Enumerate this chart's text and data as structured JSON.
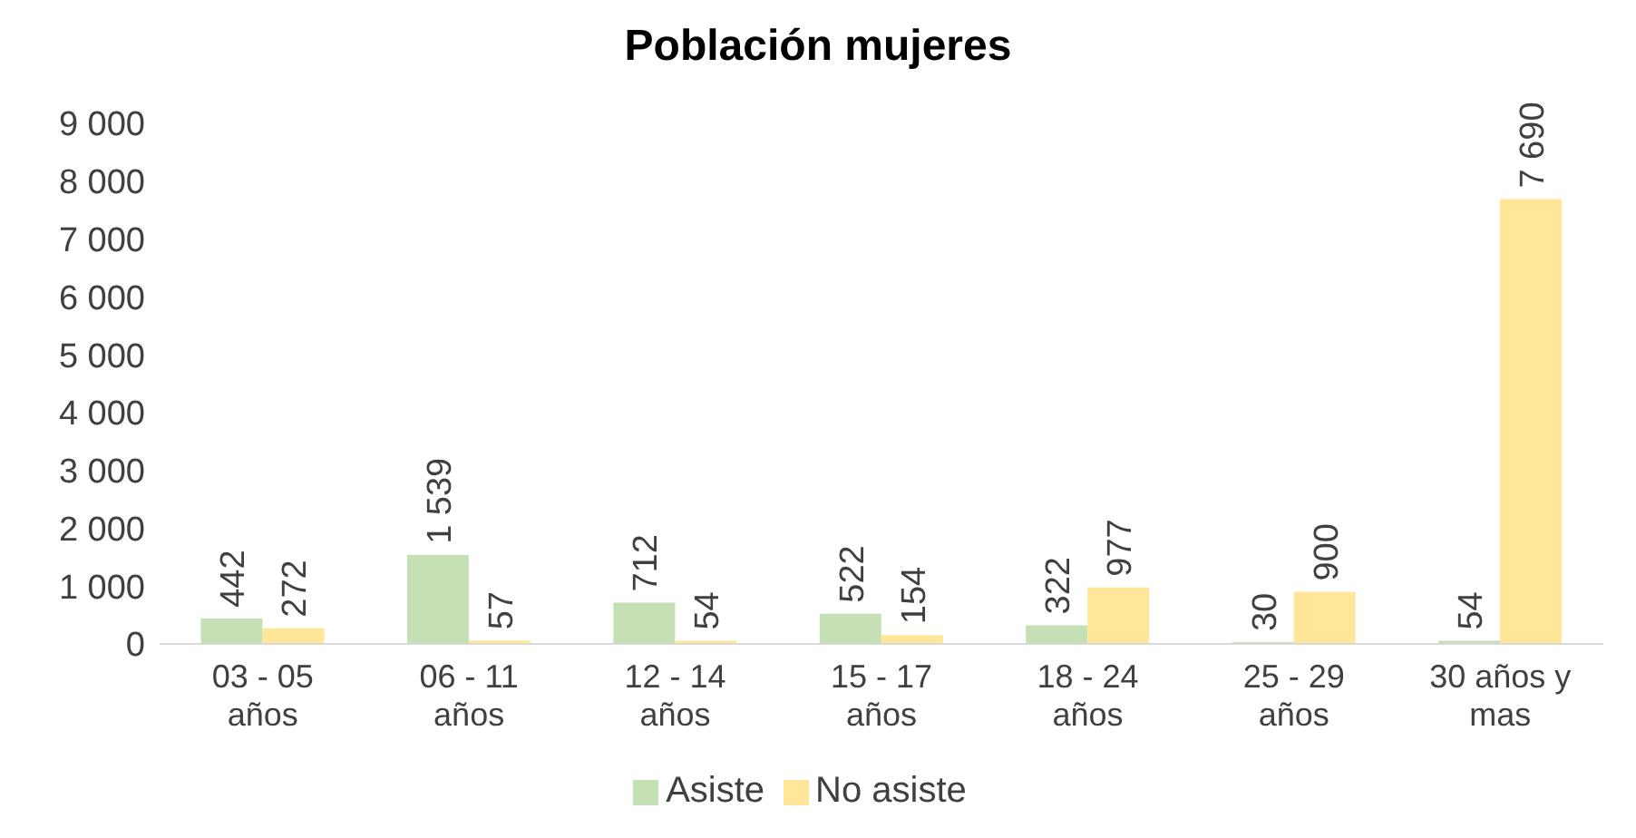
{
  "chart_data": {
    "type": "bar",
    "title": "Población mujeres",
    "categories": [
      "03 - 05 años",
      "06 - 11 años",
      "12 - 14 años",
      "15 - 17 años",
      "18 - 24 años",
      "25 - 29 años",
      "30 años y mas"
    ],
    "series": [
      {
        "name": "Asiste",
        "color": "#c5e0b4",
        "values": [
          442,
          1539,
          712,
          522,
          322,
          30,
          54
        ],
        "value_labels": [
          "442",
          "1 539",
          "712",
          "522",
          "322",
          "30",
          "54"
        ]
      },
      {
        "name": "No asiste",
        "color": "#ffe699",
        "values": [
          272,
          57,
          54,
          154,
          977,
          900,
          7690
        ],
        "value_labels": [
          "272",
          "57",
          "54",
          "154",
          "977",
          "900",
          "7 690"
        ]
      }
    ],
    "ylim": [
      0,
      9000
    ],
    "yticks": [
      0,
      {
        "value": 1000,
        "label": "1 000"
      },
      {
        "value": 2000,
        "label": "2 000"
      },
      {
        "value": 3000,
        "label": "3 000"
      },
      {
        "value": 4000,
        "label": "4 000"
      },
      {
        "value": 5000,
        "label": "5 000"
      },
      {
        "value": 6000,
        "label": "6 000"
      },
      {
        "value": 7000,
        "label": "7 000"
      },
      {
        "value": 8000,
        "label": "8 000"
      },
      {
        "value": 9000,
        "label": "9 000"
      }
    ],
    "grid": false,
    "legend": "bottom"
  }
}
